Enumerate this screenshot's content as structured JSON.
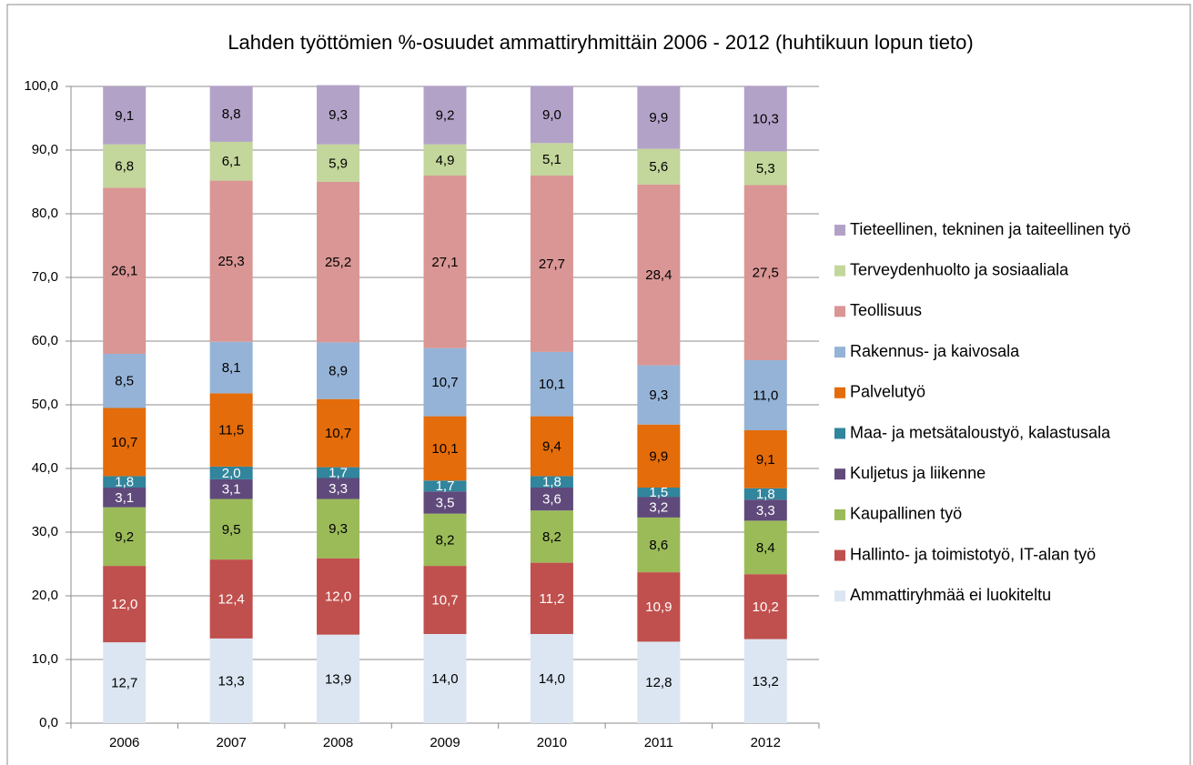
{
  "chart_data": {
    "type": "stacked_bar",
    "title": "Lahden työttömien %-osuudet ammattiryhmittäin 2006 - 2012 (huhtikuun lopun tieto)",
    "categories": [
      "2006",
      "2007",
      "2008",
      "2009",
      "2010",
      "2011",
      "2012"
    ],
    "ylim": [
      0,
      100
    ],
    "yticks": [
      {
        "value": 0,
        "label": "0,0"
      },
      {
        "value": 10,
        "label": "10,0"
      },
      {
        "value": 20,
        "label": "20,0"
      },
      {
        "value": 30,
        "label": "30,0"
      },
      {
        "value": 40,
        "label": "40,0"
      },
      {
        "value": 50,
        "label": "50,0"
      },
      {
        "value": 60,
        "label": "60,0"
      },
      {
        "value": 70,
        "label": "70,0"
      },
      {
        "value": 80,
        "label": "80,0"
      },
      {
        "value": 90,
        "label": "90,0"
      },
      {
        "value": 100,
        "label": "100,0"
      }
    ],
    "grid": true,
    "legend": "right",
    "series": [
      {
        "name": "Ammattiryhmää ei luokiteltu",
        "color": "#dce6f2",
        "values": [
          12.7,
          13.3,
          13.9,
          14.0,
          14.0,
          12.8,
          13.2
        ],
        "value_labels": [
          "12,7",
          "13,3",
          "13,9",
          "14,0",
          "14,0",
          "12,8",
          "13,2"
        ]
      },
      {
        "name": "Hallinto- ja toimistotyö, IT-alan työ",
        "color": "#c0504d",
        "values": [
          12.0,
          12.4,
          12.0,
          10.7,
          11.2,
          10.9,
          10.2
        ],
        "value_labels": [
          "12,0",
          "12,4",
          "12,0",
          "10,7",
          "11,2",
          "10,9",
          "10,2"
        ]
      },
      {
        "name": "Kaupallinen työ",
        "color": "#9bbb59",
        "values": [
          9.2,
          9.5,
          9.3,
          8.2,
          8.2,
          8.6,
          8.4
        ],
        "value_labels": [
          "9,2",
          "9,5",
          "9,3",
          "8,2",
          "8,2",
          "8,6",
          "8,4"
        ]
      },
      {
        "name": "Kuljetus ja liikenne",
        "color": "#604a7b",
        "values": [
          3.1,
          3.1,
          3.3,
          3.5,
          3.6,
          3.2,
          3.3
        ],
        "value_labels": [
          "3,1",
          "3,1",
          "3,3",
          "3,5",
          "3,6",
          "3,2",
          "3,3"
        ]
      },
      {
        "name": "Maa- ja metsätaloustyö, kalastusala",
        "color": "#31859c",
        "values": [
          1.8,
          2.0,
          1.7,
          1.7,
          1.8,
          1.5,
          1.8
        ],
        "value_labels": [
          "1,8",
          "2,0",
          "1,7",
          "1,7",
          "1,8",
          "1,5",
          "1,8"
        ]
      },
      {
        "name": "Palvelutyö",
        "color": "#e46c0a",
        "values": [
          10.7,
          11.5,
          10.7,
          10.1,
          9.4,
          9.9,
          9.1
        ],
        "value_labels": [
          "10,7",
          "11,5",
          "10,7",
          "10,1",
          "9,4",
          "9,9",
          "9,1"
        ]
      },
      {
        "name": "Rakennus- ja kaivosala",
        "color": "#95b3d7",
        "values": [
          8.5,
          8.1,
          8.9,
          10.7,
          10.1,
          9.3,
          11.0
        ],
        "value_labels": [
          "8,5",
          "8,1",
          "8,9",
          "10,7",
          "10,1",
          "9,3",
          "11,0"
        ]
      },
      {
        "name": "Teollisuus",
        "color": "#d99694",
        "values": [
          26.1,
          25.3,
          25.2,
          27.1,
          27.7,
          28.4,
          27.5
        ],
        "value_labels": [
          "26,1",
          "25,3",
          "25,2",
          "27,1",
          "27,7",
          "28,4",
          "27,5"
        ]
      },
      {
        "name": "Terveydenhuolto ja sosiaaliala",
        "color": "#c3d69b",
        "values": [
          6.8,
          6.1,
          5.9,
          4.9,
          5.1,
          5.6,
          5.3
        ],
        "value_labels": [
          "6,8",
          "6,1",
          "5,9",
          "4,9",
          "5,1",
          "5,6",
          "5,3"
        ]
      },
      {
        "name": "Tieteellinen, tekninen ja taiteellinen työ",
        "color": "#b3a2c7",
        "values": [
          9.1,
          8.8,
          9.3,
          9.2,
          9.0,
          9.9,
          10.3
        ],
        "value_labels": [
          "9,1",
          "8,8",
          "9,3",
          "9,2",
          "9,0",
          "9,9",
          "10,3"
        ]
      }
    ]
  }
}
